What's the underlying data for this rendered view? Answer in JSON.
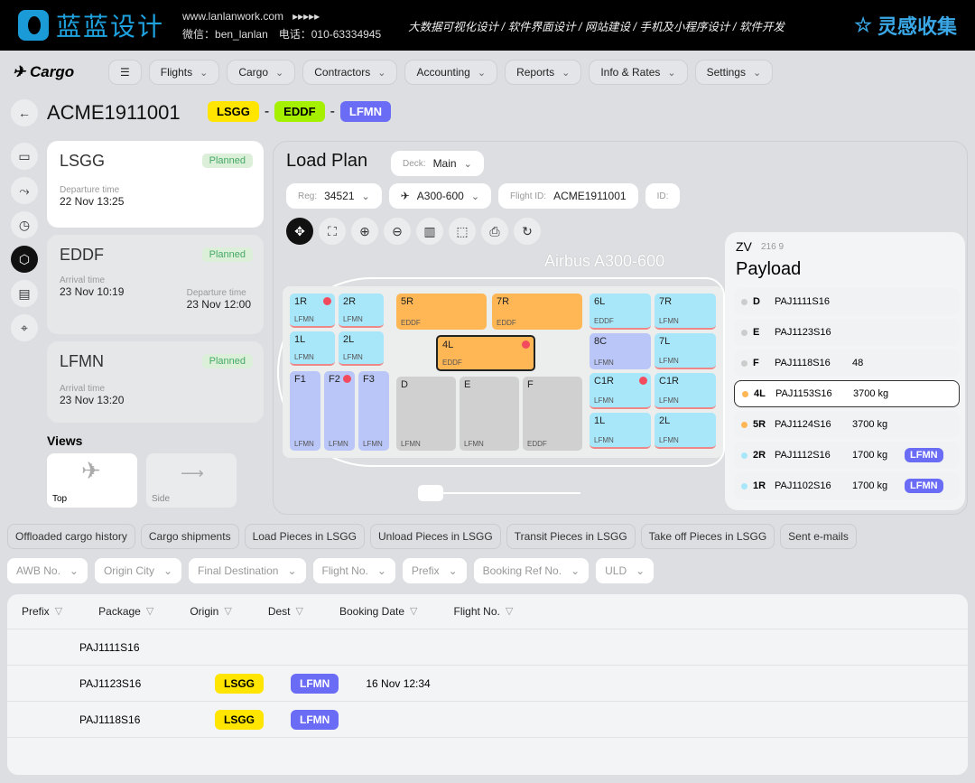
{
  "banner": {
    "logo": "蓝蓝设计",
    "website": "www.lanlanwork.com",
    "arrows": "▸▸▸▸▸",
    "wechat": "微信：ben_lanlan　电话：010-63334945",
    "services": "大数据可视化设计 / 软件界面设计 / 网站建设 / 手机及小程序设计 / 软件开发",
    "brand": "灵感收集"
  },
  "app": {
    "name": "Cargo",
    "nav": [
      "Flights",
      "Cargo",
      "Contractors",
      "Accounting",
      "Reports",
      "Info & Rates",
      "Settings"
    ]
  },
  "flight": {
    "id": "ACME1911001",
    "route": [
      {
        "code": "LSGG",
        "color": "#ffe500"
      },
      {
        "code": "EDDF",
        "color": "#a4f000"
      },
      {
        "code": "LFMN",
        "color": "#6a6cf6"
      }
    ],
    "separator": "-"
  },
  "stops": [
    {
      "code": "LSGG",
      "status": "Planned",
      "dep_label": "Departure time",
      "dep": "22 Nov 13:25"
    },
    {
      "code": "EDDF",
      "status": "Planned",
      "arr_label": "Arrival time",
      "arr": "23 Nov 10:19",
      "dep_label": "Departure time",
      "dep": "23 Nov 12:00"
    },
    {
      "code": "LFMN",
      "status": "Planned",
      "arr_label": "Arrival time",
      "arr": "23 Nov 13:20"
    }
  ],
  "loadplan": {
    "title": "Load Plan",
    "deck_label": "Deck:",
    "deck": "Main",
    "reg_label": "Reg:",
    "reg": "34521",
    "aircraft": "A300-600",
    "flight_id_label": "Flight ID:",
    "flight_id": "ACME1911001",
    "id_label": "ID:",
    "aircraft_name": "Airbus A300-600",
    "tools": [
      "move",
      "fit",
      "zoom-in",
      "zoom-out",
      "save",
      "select",
      "print",
      "refresh"
    ],
    "slots": [
      {
        "code": "1R",
        "dest": "LFMN",
        "alert": true
      },
      {
        "code": "2R",
        "dest": "LFMN"
      },
      {
        "code": "1L",
        "dest": "LFMN"
      },
      {
        "code": "2L",
        "dest": "LFMN"
      },
      {
        "code": "F1",
        "dest": "LFMN"
      },
      {
        "code": "F2",
        "dest": "LFMN",
        "alert": true
      },
      {
        "code": "F3",
        "dest": "LFMN"
      },
      {
        "code": "5R",
        "dest": "EDDF"
      },
      {
        "code": "7R",
        "dest": "EDDF"
      },
      {
        "code": "4L",
        "dest": "EDDF",
        "alert": true
      },
      {
        "code": "D",
        "dest": "LFMN"
      },
      {
        "code": "E",
        "dest": "LFMN"
      },
      {
        "code": "F",
        "dest": "EDDF"
      },
      {
        "code": "6L",
        "dest": "EDDF"
      },
      {
        "code": "7R",
        "dest": "LFMN"
      },
      {
        "code": "7L",
        "dest": "LFMN"
      },
      {
        "code": "8C",
        "dest": "LFMN"
      },
      {
        "code": "C1R",
        "dest": "LFMN",
        "alert": true
      },
      {
        "code": "C1R",
        "dest": "LFMN"
      },
      {
        "code": "1L",
        "dest": "LFMN"
      },
      {
        "code": "2L",
        "dest": "LFMN"
      }
    ],
    "views_title": "Views",
    "views": [
      "Top",
      "Side"
    ]
  },
  "payload": {
    "title": "Payload",
    "header_code": "ZV",
    "header_sub": "216 9",
    "rows": [
      {
        "pos": "D",
        "awb": "PAJ1111S16",
        "weight": "",
        "dot": "#ccc"
      },
      {
        "pos": "E",
        "awb": "PAJ1123S16",
        "weight": "",
        "dot": "#ccc"
      },
      {
        "pos": "F",
        "awb": "PAJ1118S16",
        "weight": "48",
        "dot": "#ccc"
      },
      {
        "pos": "4L",
        "awb": "PAJ1153S16",
        "weight": "3700 kg",
        "dot": "#ffb654"
      },
      {
        "pos": "5R",
        "awb": "PAJ1124S16",
        "weight": "3700 kg",
        "dot": "#ffb654"
      },
      {
        "pos": "2R",
        "awb": "PAJ1112S16",
        "weight": "1700 kg",
        "dot": "#a8e6fa"
      },
      {
        "pos": "1R",
        "awb": "PAJ1102S16",
        "weight": "1700 kg",
        "dot": "#a8e6fa"
      }
    ],
    "dest": "LFMN"
  },
  "tabs": [
    "Offloaded cargo history",
    "Cargo shipments",
    "Load Pieces in LSGG",
    "Unload Pieces in LSGG",
    "Transit Pieces in LSGG",
    "Take off Pieces in LSGG",
    "Sent e-mails"
  ],
  "filters": [
    "AWB No.",
    "Origin City",
    "Final Destination",
    "Flight No.",
    "Prefix",
    "Booking Ref No.",
    "ULD"
  ],
  "table": {
    "headers": [
      "Prefix",
      "Package",
      "Origin",
      "Dest",
      "Booking Date",
      "Flight No."
    ],
    "rows": [
      {
        "package": "PAJ1111S16",
        "origin": "",
        "dest": "",
        "date": ""
      },
      {
        "package": "PAJ1123S16",
        "origin": "LSGG",
        "dest": "LFMN",
        "date": "16 Nov 12:34"
      },
      {
        "package": "PAJ1118S16",
        "origin": "LSGG",
        "dest": "LFMN",
        "date": ""
      }
    ]
  },
  "colors": {
    "lsgg": "#ffe500",
    "eddf": "#a4f000",
    "lfmn": "#6a6cf6",
    "alert": "#f24b5e"
  }
}
